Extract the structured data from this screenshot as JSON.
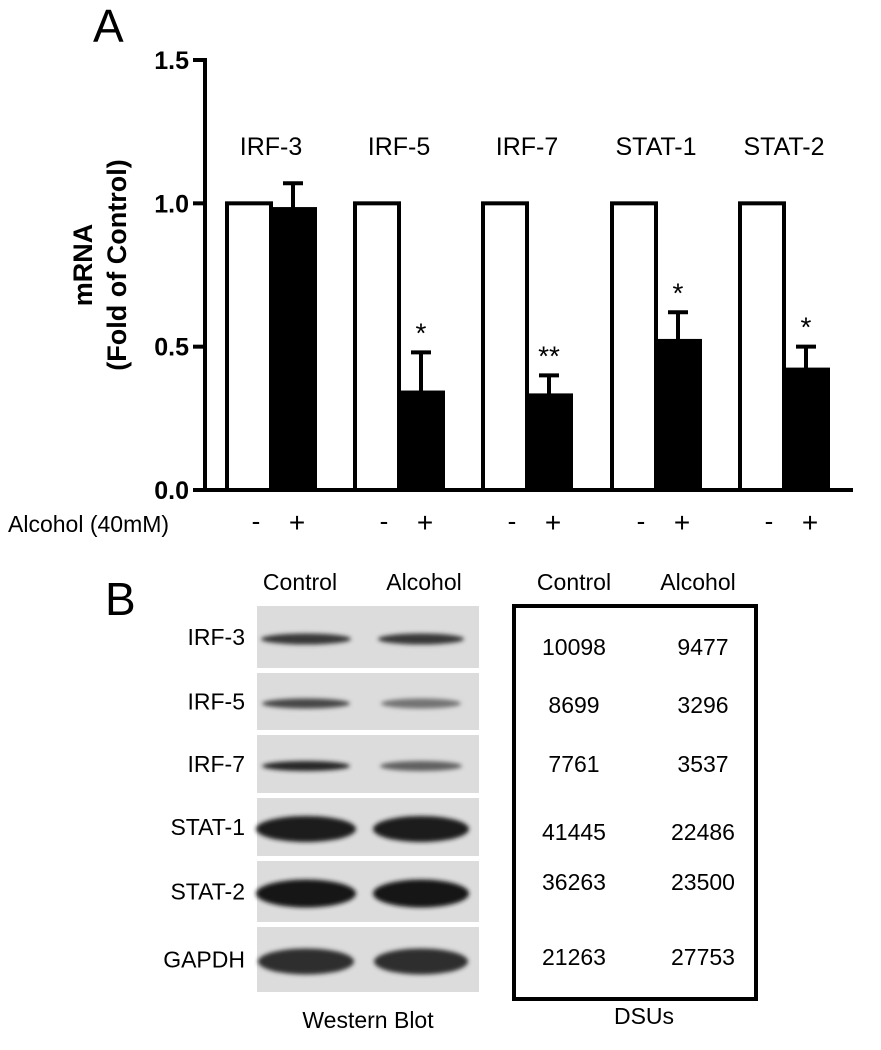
{
  "panel_a": {
    "letter": "A",
    "ylabel_line1": "mRNA",
    "ylabel_line2": "(Fold of Control)",
    "treatment_label": "Alcohol (40mM)",
    "minus": "-",
    "plus": "+"
  },
  "chart_data": {
    "type": "bar",
    "categories": [
      "IRF-3",
      "IRF-5",
      "IRF-7",
      "STAT-1",
      "STAT-2"
    ],
    "series": [
      {
        "values": [
          1.0,
          1.0,
          1.0,
          1.0,
          1.0
        ],
        "errors": [
          0,
          0,
          0,
          0,
          0
        ],
        "color": "#ffffff"
      },
      {
        "values": [
          0.98,
          0.34,
          0.33,
          0.52,
          0.42
        ],
        "errors": [
          0.09,
          0.14,
          0.07,
          0.1,
          0.08
        ],
        "color": "#000000"
      }
    ],
    "significance": [
      "",
      "*",
      "**",
      "*",
      "*"
    ],
    "ylim": [
      0.0,
      1.5
    ],
    "yticks": [
      "0.0",
      "0.5",
      "1.0",
      "1.5"
    ],
    "grid": false,
    "title": "",
    "xlabel": "",
    "ylabel": "mRNA (Fold of Control)"
  },
  "panel_b": {
    "letter": "B",
    "col_control": "Control",
    "col_alcohol": "Alcohol",
    "rows": [
      {
        "protein": "IRF-3",
        "control": "10098",
        "alcohol": "9477"
      },
      {
        "protein": "IRF-5",
        "control": "8699",
        "alcohol": "3296"
      },
      {
        "protein": "IRF-7",
        "control": "7761",
        "alcohol": "3537"
      },
      {
        "protein": "STAT-1",
        "control": "41445",
        "alcohol": "22486"
      },
      {
        "protein": "STAT-2",
        "control": "36263",
        "alcohol": "23500"
      },
      {
        "protein": "GAPDH",
        "control": "21263",
        "alcohol": "27753"
      }
    ],
    "blot_caption": "Western Blot",
    "dsu_caption": "DSUs"
  }
}
